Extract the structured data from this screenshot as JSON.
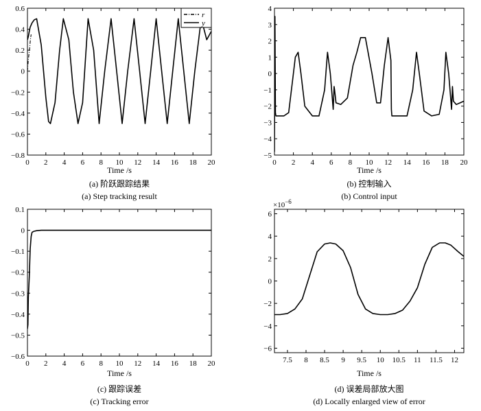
{
  "chart_data": [
    {
      "id": "a",
      "type": "line",
      "caption_cn": "(a) 阶跃跟踪结果",
      "caption_en": "(a) Step tracking result",
      "xlabel": "Time /s",
      "ylabel": "",
      "xlim": [
        0,
        20
      ],
      "ylim": [
        -0.8,
        0.6
      ],
      "xticks": [
        0,
        2,
        4,
        6,
        8,
        10,
        12,
        14,
        16,
        18,
        20
      ],
      "yticks": [
        -0.8,
        -0.6,
        -0.4,
        -0.2,
        0,
        0.2,
        0.4,
        0.6
      ],
      "ytick_labels": [
        "−0.8",
        "−0.6",
        "−0.4",
        "−0.2",
        "0",
        "0.2",
        "0.4",
        "0.6"
      ],
      "legend": {
        "position": "top-right",
        "entries": [
          "r",
          "y"
        ]
      },
      "grid": false,
      "series": [
        {
          "name": "r",
          "style": "dashdot",
          "x": [
            0,
            0.05,
            0.1,
            0.15,
            0.2,
            0.25,
            0.3,
            0.35,
            0.4
          ],
          "y": [
            0.0,
            0.06,
            0.11,
            0.15,
            0.19,
            0.23,
            0.28,
            0.32,
            0.35
          ]
        },
        {
          "name": "y",
          "style": "solid",
          "x": [
            0,
            0.1,
            0.2,
            0.3,
            0.5,
            0.75,
            1.0,
            1.5,
            2.0,
            2.3,
            2.5,
            3.0,
            3.5,
            3.9,
            4.5,
            5.0,
            5.5,
            6.0,
            6.6,
            7.2,
            7.8,
            8.4,
            9.1,
            9.7,
            10.3,
            10.9,
            11.6,
            12.2,
            12.8,
            13.4,
            14.0,
            14.6,
            15.2,
            15.8,
            16.4,
            17.0,
            17.6,
            18.2,
            18.9,
            19.5,
            20.0
          ],
          "y": [
            0.3,
            0.33,
            0.38,
            0.42,
            0.46,
            0.49,
            0.5,
            0.25,
            -0.25,
            -0.48,
            -0.5,
            -0.3,
            0.2,
            0.5,
            0.3,
            -0.2,
            -0.5,
            -0.3,
            0.5,
            0.2,
            -0.5,
            0.0,
            0.5,
            0.0,
            -0.5,
            0.0,
            0.5,
            0.0,
            -0.5,
            0.0,
            0.5,
            0.0,
            -0.5,
            0.0,
            0.5,
            0.0,
            -0.5,
            0.0,
            0.5,
            0.3,
            0.38
          ]
        }
      ]
    },
    {
      "id": "b",
      "type": "line",
      "caption_cn": "(b) 控制输入",
      "caption_en": "(b) Control input",
      "xlabel": "Time /s",
      "ylabel": "",
      "xlim": [
        0,
        20
      ],
      "ylim": [
        -5,
        4
      ],
      "xticks": [
        0,
        2,
        4,
        6,
        8,
        10,
        12,
        14,
        16,
        18,
        20
      ],
      "yticks": [
        -5,
        -4,
        -3,
        -2,
        -1,
        0,
        1,
        2,
        3,
        4
      ],
      "ytick_labels": [
        "−5",
        "−4",
        "−3",
        "−2",
        "−1",
        "0",
        "1",
        "2",
        "3",
        "4"
      ],
      "grid": false,
      "series": [
        {
          "name": "",
          "style": "solid",
          "x": [
            0,
            0.05,
            0.1,
            0.15,
            0.2,
            0.25,
            0.3,
            0.4,
            0.5,
            1.0,
            1.5,
            2.0,
            2.2,
            2.5,
            2.8,
            3.2,
            4.0,
            4.7,
            5.3,
            5.6,
            5.9,
            6.2,
            6.3,
            6.35,
            6.5,
            7.0,
            7.7,
            8.3,
            8.7,
            9.1,
            9.6,
            10.3,
            10.8,
            11.2,
            11.6,
            12.0,
            12.3,
            12.35,
            12.4,
            13.0,
            14.0,
            14.6,
            15.0,
            15.3,
            15.8,
            16.6,
            17.4,
            17.9,
            18.1,
            18.4,
            18.7,
            18.8,
            18.9,
            19.2,
            19.6,
            20.0
          ],
          "y": [
            -4.8,
            3.5,
            -2.4,
            -2.6,
            -2.6,
            -2.6,
            -2.6,
            -2.6,
            -2.6,
            -2.6,
            -2.4,
            0.0,
            1.0,
            1.3,
            0.0,
            -2.0,
            -2.6,
            -2.6,
            -1.0,
            1.3,
            0.0,
            -2.2,
            -0.8,
            -1.0,
            -1.8,
            -1.9,
            -1.5,
            0.5,
            1.3,
            2.2,
            2.2,
            0.0,
            -1.8,
            -1.8,
            0.5,
            2.2,
            0.8,
            -2.2,
            -2.6,
            -2.6,
            -2.6,
            -1.0,
            1.3,
            0.0,
            -2.3,
            -2.6,
            -2.5,
            -1.0,
            1.3,
            0.0,
            -2.2,
            -0.8,
            -1.7,
            -1.9,
            -1.8,
            -1.7
          ]
        }
      ]
    },
    {
      "id": "c",
      "type": "line",
      "caption_cn": "(c) 跟踪误差",
      "caption_en": "(c) Tracking error",
      "xlabel": "Time /s",
      "ylabel": "",
      "xlim": [
        0,
        20
      ],
      "ylim": [
        -0.6,
        0.1
      ],
      "xticks": [
        0,
        2,
        4,
        6,
        8,
        10,
        12,
        14,
        16,
        18,
        20
      ],
      "yticks": [
        -0.6,
        -0.5,
        -0.4,
        -0.3,
        -0.2,
        -0.1,
        0,
        0.1
      ],
      "ytick_labels": [
        "−0.6",
        "−0.5",
        "−0.4",
        "−0.3",
        "−0.2",
        "−0.1",
        "0",
        "0.1"
      ],
      "grid": false,
      "series": [
        {
          "name": "",
          "style": "solid",
          "x": [
            0,
            0.05,
            0.1,
            0.15,
            0.2,
            0.3,
            0.4,
            0.5,
            0.7,
            1.0,
            1.5,
            2.0,
            5.0,
            10.0,
            15.0,
            20.0
          ],
          "y": [
            -0.47,
            -0.45,
            -0.32,
            -0.27,
            -0.22,
            -0.09,
            -0.03,
            -0.01,
            -0.005,
            -0.002,
            0.0,
            0.0,
            0.0,
            0.0,
            0.0,
            0.0
          ]
        }
      ]
    },
    {
      "id": "d",
      "type": "line",
      "caption_cn": "(d) 误差局部放大图",
      "caption_en": "(d) Locally enlarged view of error",
      "xlabel": "Time /s",
      "ylabel": "",
      "xlim": [
        7.15,
        12.25
      ],
      "ylim": [
        -6.4,
        6.4
      ],
      "y_multiplier": "×10",
      "y_multiplier_exp": "−6",
      "xticks": [
        7.5,
        8,
        8.5,
        9,
        9.5,
        10,
        10.5,
        11,
        11.5,
        12
      ],
      "yticks": [
        -6,
        -4,
        -2,
        0,
        2,
        4,
        6
      ],
      "ytick_labels": [
        "−6",
        "−4",
        "−2",
        "0",
        "2",
        "4",
        "6"
      ],
      "grid": false,
      "series": [
        {
          "name": "",
          "style": "solid",
          "x": [
            7.15,
            7.3,
            7.5,
            7.7,
            7.9,
            8.1,
            8.3,
            8.5,
            8.65,
            8.8,
            9.0,
            9.2,
            9.4,
            9.6,
            9.8,
            10.0,
            10.2,
            10.4,
            10.6,
            10.8,
            11.0,
            11.2,
            11.4,
            11.6,
            11.75,
            11.9,
            12.1,
            12.25
          ],
          "y": [
            -3.0,
            -3.0,
            -2.9,
            -2.5,
            -1.6,
            0.5,
            2.6,
            3.3,
            3.4,
            3.3,
            2.7,
            1.2,
            -1.2,
            -2.5,
            -2.9,
            -3.0,
            -3.0,
            -2.9,
            -2.6,
            -1.8,
            -0.6,
            1.5,
            3.0,
            3.4,
            3.4,
            3.2,
            2.6,
            2.2
          ]
        }
      ]
    }
  ]
}
